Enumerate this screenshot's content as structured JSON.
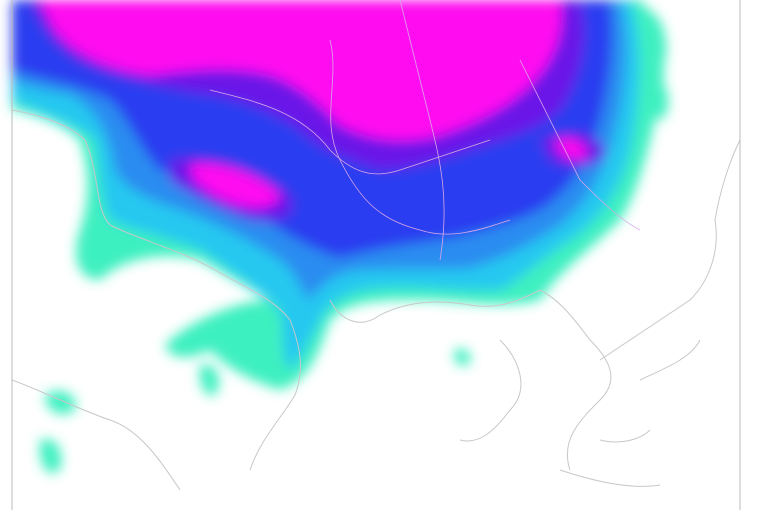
{
  "map": {
    "type": "precipitation-contour-map",
    "colors": {
      "background": "#ffffff",
      "coastline": "#c8c8c8",
      "border": "#d8a8e8",
      "level_1": "#3cf0c0",
      "level_2": "#28c8f0",
      "level_3": "#2a8cf0",
      "level_4": "#2a3cf0",
      "level_5": "#6a14e8",
      "level_6": "#ff10f0"
    }
  }
}
